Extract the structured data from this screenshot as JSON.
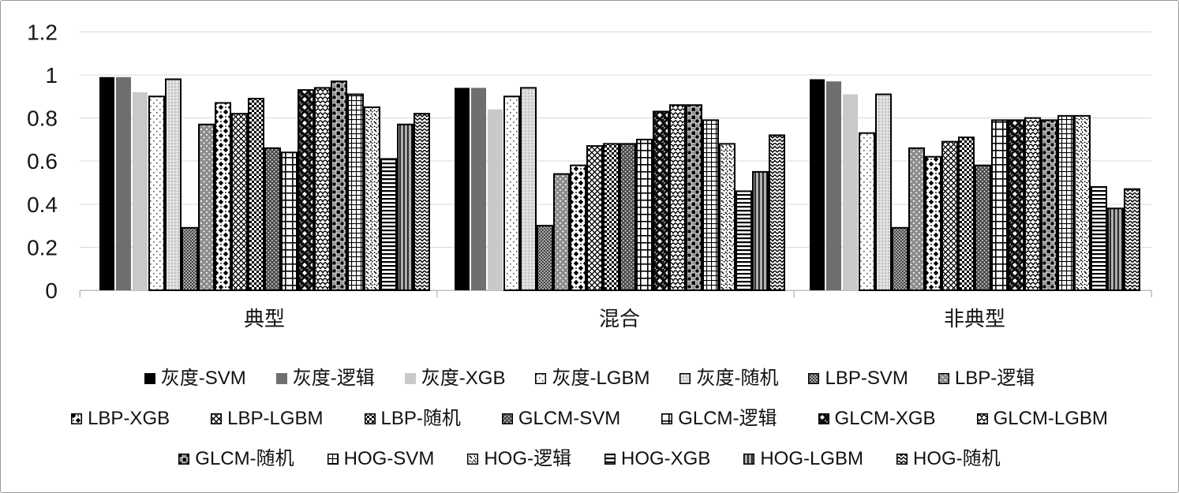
{
  "chart_data": {
    "type": "bar",
    "categories": [
      "典型",
      "混合",
      "非典型"
    ],
    "ylim": [
      0,
      1.2
    ],
    "yticks": [
      0,
      0.2,
      0.4,
      0.6,
      0.8,
      1,
      1.2
    ],
    "ytick_labels": [
      "0",
      "0.2",
      "0.4",
      "0.6",
      "0.8",
      "1",
      "1.2"
    ],
    "grid": true,
    "legend_position": "bottom",
    "legend_rows": [
      7,
      7,
      6
    ],
    "series": [
      {
        "name": "灰度-SVM",
        "pattern": "solid-black",
        "values": [
          0.99,
          0.94,
          0.98
        ]
      },
      {
        "name": "灰度-逻辑",
        "pattern": "solid-darkgray",
        "values": [
          0.99,
          0.94,
          0.97
        ]
      },
      {
        "name": "灰度-XGB",
        "pattern": "solid-lightgray",
        "values": [
          0.92,
          0.84,
          0.91
        ]
      },
      {
        "name": "灰度-LGBM",
        "pattern": "dots-sparse",
        "values": [
          0.9,
          0.9,
          0.73
        ]
      },
      {
        "name": "灰度-随机",
        "pattern": "dots-fine-light",
        "values": [
          0.98,
          0.94,
          0.91
        ]
      },
      {
        "name": "LBP-SVM",
        "pattern": "dither-medium",
        "values": [
          0.29,
          0.3,
          0.29
        ]
      },
      {
        "name": "LBP-逻辑",
        "pattern": "dots-on-gray",
        "values": [
          0.77,
          0.54,
          0.66
        ]
      },
      {
        "name": "LBP-XGB",
        "pattern": "diamond-clubs",
        "values": [
          0.87,
          0.58,
          0.62
        ]
      },
      {
        "name": "LBP-LGBM",
        "pattern": "diagonal-lattice",
        "values": [
          0.82,
          0.67,
          0.69
        ]
      },
      {
        "name": "LBP-随机",
        "pattern": "checkerboard",
        "values": [
          0.89,
          0.68,
          0.71
        ]
      },
      {
        "name": "GLCM-SVM",
        "pattern": "white-dots-on-dark",
        "values": [
          0.66,
          0.68,
          0.58
        ]
      },
      {
        "name": "GLCM-逻辑",
        "pattern": "grid-large",
        "values": [
          0.64,
          0.7,
          0.79
        ]
      },
      {
        "name": "GLCM-XGB",
        "pattern": "dark-diamond-checker",
        "values": [
          0.93,
          0.83,
          0.79
        ]
      },
      {
        "name": "GLCM-LGBM",
        "pattern": "scales",
        "values": [
          0.94,
          0.86,
          0.8
        ]
      },
      {
        "name": "GLCM-随机",
        "pattern": "checker-gray",
        "values": [
          0.97,
          0.86,
          0.79
        ]
      },
      {
        "name": "HOG-SVM",
        "pattern": "grid-fine",
        "values": [
          0.91,
          0.79,
          0.81
        ]
      },
      {
        "name": "HOG-逻辑",
        "pattern": "diagonal-dashes",
        "values": [
          0.85,
          0.68,
          0.81
        ]
      },
      {
        "name": "HOG-XGB",
        "pattern": "horizontal-lines",
        "values": [
          0.61,
          0.46,
          0.48
        ]
      },
      {
        "name": "HOG-LGBM",
        "pattern": "vertical-lines-gray",
        "values": [
          0.77,
          0.55,
          0.38
        ]
      },
      {
        "name": "HOG-随机",
        "pattern": "zigzag",
        "values": [
          0.82,
          0.72,
          0.47
        ]
      }
    ]
  },
  "colors": {
    "black": "#000000",
    "dark_gray": "#6f6f6f",
    "light_gray": "#c9c9c9",
    "gridline": "#d9d9d9",
    "axis": "#bfbfbf",
    "text": "#151515"
  }
}
